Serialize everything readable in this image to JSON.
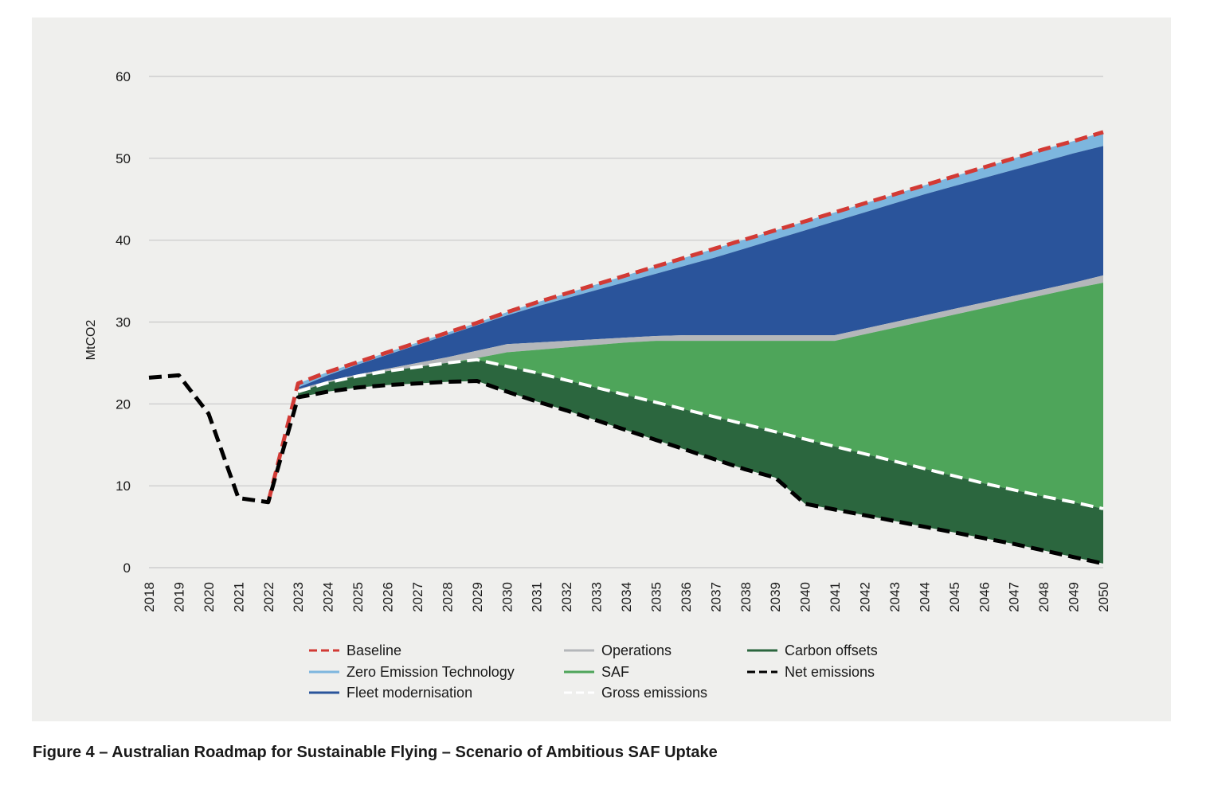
{
  "caption": "Figure 4 – Australian Roadmap for Sustainable Flying – Scenario of Ambitious SAF Uptake",
  "chart_data": {
    "type": "area",
    "ylabel": "MtCO2",
    "xlabel": "",
    "ylim": [
      0,
      60
    ],
    "yticks": [
      0,
      10,
      20,
      30,
      40,
      50,
      60
    ],
    "grid": true,
    "legend_position": "bottom",
    "x": [
      2018,
      2019,
      2020,
      2021,
      2022,
      2023,
      2024,
      2025,
      2026,
      2027,
      2028,
      2029,
      2030,
      2031,
      2032,
      2033,
      2034,
      2035,
      2036,
      2037,
      2038,
      2039,
      2040,
      2041,
      2042,
      2043,
      2044,
      2045,
      2046,
      2047,
      2048,
      2049,
      2050
    ],
    "colors": {
      "baseline": "#d23a35",
      "zero_emission": "#7db6de",
      "fleet": "#2a549b",
      "operations": "#b4b7ba",
      "saf": "#4ea55a",
      "offsets": "#2b663e",
      "gross": "#ffffff",
      "net": "#000000",
      "grid": "#c8c8c8"
    },
    "legend": [
      {
        "key": "baseline",
        "label": "Baseline",
        "style": "dash"
      },
      {
        "key": "zero_emission",
        "label": "Zero Emission Technology",
        "style": "solid"
      },
      {
        "key": "fleet",
        "label": "Fleet modernisation",
        "style": "solid"
      },
      {
        "key": "operations",
        "label": "Operations",
        "style": "solid"
      },
      {
        "key": "saf",
        "label": "SAF",
        "style": "solid"
      },
      {
        "key": "gross",
        "label": "Gross emissions",
        "style": "dash"
      },
      {
        "key": "offsets",
        "label": "Carbon offsets",
        "style": "solid"
      },
      {
        "key": "net",
        "label": "Net emissions",
        "style": "dash"
      }
    ],
    "series": {
      "baseline": {
        "x": [
          2023,
          2024,
          2025,
          2026,
          2027,
          2028,
          2029,
          2030,
          2031,
          2032,
          2033,
          2034,
          2035,
          2036,
          2037,
          2038,
          2039,
          2040,
          2041,
          2042,
          2043,
          2044,
          2045,
          2046,
          2047,
          2048,
          2049,
          2050
        ],
        "y": [
          22.5,
          23.9,
          25.1,
          26.3,
          27.5,
          28.7,
          29.9,
          31.2,
          32.4,
          33.5,
          34.6,
          35.7,
          36.8,
          37.9,
          39.0,
          40.1,
          41.2,
          42.3,
          43.4,
          44.5,
          45.6,
          46.7,
          47.8,
          48.9,
          50.0,
          51.1,
          52.1,
          53.2
        ]
      },
      "zero_emission_top": {
        "x": [
          2023,
          2024,
          2025,
          2026,
          2027,
          2028,
          2029,
          2030,
          2031,
          2032,
          2033,
          2034,
          2035,
          2036,
          2037,
          2038,
          2039,
          2040,
          2041,
          2042,
          2043,
          2044,
          2045,
          2046,
          2047,
          2048,
          2049,
          2050
        ],
        "y": [
          22.5,
          23.9,
          25.1,
          26.3,
          27.5,
          28.7,
          29.9,
          31.2,
          32.4,
          33.5,
          34.6,
          35.7,
          36.8,
          37.9,
          39.0,
          40.1,
          41.2,
          42.3,
          43.4,
          44.5,
          45.6,
          46.7,
          47.8,
          48.9,
          50.0,
          51.1,
          52.1,
          53.2
        ]
      },
      "fleet_top": {
        "x": [
          2023,
          2024,
          2025,
          2026,
          2027,
          2028,
          2029,
          2030,
          2031,
          2032,
          2033,
          2034,
          2035,
          2036,
          2037,
          2038,
          2039,
          2040,
          2041,
          2042,
          2043,
          2044,
          2045,
          2046,
          2047,
          2048,
          2049,
          2050
        ],
        "y": [
          22.0,
          23.5,
          24.8,
          26.0,
          27.2,
          28.4,
          29.6,
          30.8,
          31.9,
          32.9,
          33.9,
          34.9,
          35.9,
          36.9,
          37.9,
          39.0,
          40.1,
          41.2,
          42.3,
          43.4,
          44.5,
          45.6,
          46.6,
          47.6,
          48.6,
          49.6,
          50.6,
          51.5
        ]
      },
      "operations_top": {
        "x": [
          2023,
          2024,
          2025,
          2026,
          2027,
          2028,
          2029,
          2030,
          2031,
          2032,
          2033,
          2034,
          2035,
          2036,
          2037,
          2038,
          2039,
          2040,
          2041,
          2042,
          2043,
          2044,
          2045,
          2046,
          2047,
          2048,
          2049,
          2050
        ],
        "y": [
          21.8,
          22.8,
          23.6,
          24.3,
          25.0,
          25.7,
          26.5,
          27.3,
          27.5,
          27.7,
          27.9,
          28.1,
          28.3,
          28.4,
          28.4,
          28.4,
          28.4,
          28.4,
          28.4,
          29.2,
          30.0,
          30.8,
          31.6,
          32.4,
          33.2,
          34.0,
          34.8,
          35.7
        ]
      },
      "saf_top": {
        "x": [
          2023,
          2024,
          2025,
          2026,
          2027,
          2028,
          2029,
          2030,
          2031,
          2032,
          2033,
          2034,
          2035,
          2036,
          2037,
          2038,
          2039,
          2040,
          2041,
          2042,
          2043,
          2044,
          2045,
          2046,
          2047,
          2048,
          2049,
          2050
        ],
        "y": [
          21.6,
          22.5,
          23.2,
          23.8,
          24.4,
          25.0,
          25.6,
          26.3,
          26.6,
          26.9,
          27.2,
          27.5,
          27.7,
          27.7,
          27.7,
          27.7,
          27.7,
          27.7,
          27.7,
          28.5,
          29.3,
          30.1,
          30.9,
          31.7,
          32.5,
          33.3,
          34.1,
          34.8
        ]
      },
      "gross": {
        "x": [
          2023,
          2024,
          2025,
          2026,
          2027,
          2028,
          2029,
          2030,
          2031,
          2032,
          2033,
          2034,
          2035,
          2036,
          2037,
          2038,
          2039,
          2040,
          2041,
          2042,
          2043,
          2044,
          2045,
          2046,
          2047,
          2048,
          2049,
          2050
        ],
        "y": [
          21.5,
          22.6,
          23.4,
          24.0,
          24.5,
          25.0,
          25.4,
          24.6,
          23.8,
          22.9,
          22.0,
          21.1,
          20.2,
          19.3,
          18.4,
          17.5,
          16.6,
          15.7,
          14.8,
          13.9,
          13.0,
          12.1,
          11.2,
          10.3,
          9.5,
          8.7,
          8.0,
          7.2
        ]
      },
      "net": {
        "x": [
          2018,
          2019,
          2020,
          2021,
          2022,
          2023,
          2024,
          2025,
          2026,
          2027,
          2028,
          2029,
          2030,
          2031,
          2032,
          2033,
          2034,
          2035,
          2036,
          2037,
          2038,
          2039,
          2040,
          2041,
          2042,
          2043,
          2044,
          2045,
          2046,
          2047,
          2048,
          2049,
          2050
        ],
        "y": [
          23.2,
          23.5,
          18.8,
          8.5,
          8.0,
          20.8,
          21.5,
          22.0,
          22.3,
          22.5,
          22.7,
          22.8,
          21.5,
          20.3,
          19.2,
          18.0,
          16.8,
          15.6,
          14.4,
          13.2,
          12.0,
          11.0,
          7.8,
          7.1,
          6.4,
          5.7,
          5.0,
          4.3,
          3.6,
          2.9,
          2.1,
          1.3,
          0.5
        ]
      }
    }
  }
}
